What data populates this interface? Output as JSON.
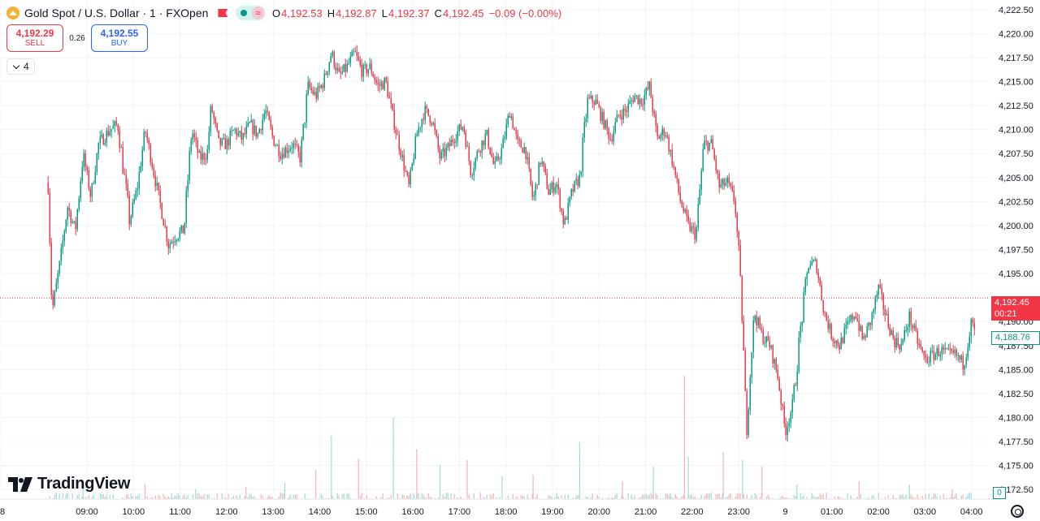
{
  "symbol": {
    "title": "Gold Spot / U.S. Dollar · 1 · FXOpen",
    "icon": "gold-symbol-icon",
    "ohlc": {
      "o_label": "O",
      "o": "4,192.53",
      "h_label": "H",
      "h": "4,192.87",
      "l_label": "L",
      "l": "4,192.37",
      "c_label": "C",
      "c": "4,192.45",
      "change": "−0.09 (−0.00%)"
    },
    "wave_glyph": "≈"
  },
  "trade": {
    "sell_price": "4,192.29",
    "sell_label": "SELL",
    "spread": "0.26",
    "buy_price": "4,192.55",
    "buy_label": "BUY"
  },
  "indicators": {
    "count": "4"
  },
  "brand": {
    "name": "TradingView"
  },
  "price_tags": {
    "last_price": "4,192.45",
    "countdown": "00:21",
    "avg_line": "4,188.76",
    "volume": "0"
  },
  "colors": {
    "up": "#089981",
    "down": "#f23645",
    "up_volume": "#9fdcd1",
    "down_volume": "#f6b2b8",
    "grid": "#f0f3fa",
    "last_line": "#f23645"
  },
  "chart_data": {
    "type": "candlestick",
    "title": "Gold Spot / U.S. Dollar",
    "interval": "1",
    "ylim": [
      4171.5,
      4223.5
    ],
    "y_ticks": [
      "4,222.50",
      "4,220.00",
      "4,217.50",
      "4,215.00",
      "4,212.50",
      "4,210.00",
      "4,207.50",
      "4,205.00",
      "4,202.50",
      "4,200.00",
      "4,197.50",
      "4,195.00",
      "4,190.00",
      "4,187.50",
      "4,185.00",
      "4,182.50",
      "4,180.00",
      "4,177.50",
      "4,175.00",
      "4,172.50"
    ],
    "x_ticks": [
      "8",
      "09:00",
      "10:00",
      "11:00",
      "12:00",
      "13:00",
      "14:00",
      "15:00",
      "16:00",
      "17:00",
      "18:00",
      "19:00",
      "20:00",
      "21:00",
      "22:00",
      "23:00",
      "9",
      "01:00",
      "02:00",
      "03:00",
      "04:00"
    ],
    "last_price": 4192.45,
    "grid": true,
    "price_path": [
      [
        "08:10",
        4204.5
      ],
      [
        "08:15",
        4191.0
      ],
      [
        "08:25",
        4196.0
      ],
      [
        "08:35",
        4202.0
      ],
      [
        "08:45",
        4199.5
      ],
      [
        "08:55",
        4207.5
      ],
      [
        "09:05",
        4203.0
      ],
      [
        "09:15",
        4208.5
      ],
      [
        "09:30",
        4210.0
      ],
      [
        "09:40",
        4210.5
      ],
      [
        "09:55",
        4200.5
      ],
      [
        "10:05",
        4204.0
      ],
      [
        "10:15",
        4210.0
      ],
      [
        "10:25",
        4206.0
      ],
      [
        "10:35",
        4202.0
      ],
      [
        "10:45",
        4198.0
      ],
      [
        "10:55",
        4199.0
      ],
      [
        "11:05",
        4199.5
      ],
      [
        "11:15",
        4210.0
      ],
      [
        "11:25",
        4207.0
      ],
      [
        "11:35",
        4207.5
      ],
      [
        "11:40",
        4212.5
      ],
      [
        "11:50",
        4208.5
      ],
      [
        "12:00",
        4208.5
      ],
      [
        "12:10",
        4210.0
      ],
      [
        "12:20",
        4209.0
      ],
      [
        "12:30",
        4210.5
      ],
      [
        "12:40",
        4209.5
      ],
      [
        "12:50",
        4212.0
      ],
      [
        "13:00",
        4209.0
      ],
      [
        "13:10",
        4207.5
      ],
      [
        "13:25",
        4208.5
      ],
      [
        "13:35",
        4207.0
      ],
      [
        "13:45",
        4214.5
      ],
      [
        "13:55",
        4213.5
      ],
      [
        "14:05",
        4215.0
      ],
      [
        "14:15",
        4218.0
      ],
      [
        "14:25",
        4215.5
      ],
      [
        "14:35",
        4216.5
      ],
      [
        "14:45",
        4218.0
      ],
      [
        "14:55",
        4216.0
      ],
      [
        "15:05",
        4216.5
      ],
      [
        "15:15",
        4214.5
      ],
      [
        "15:25",
        4215.0
      ],
      [
        "15:35",
        4211.0
      ],
      [
        "15:45",
        4207.5
      ],
      [
        "15:55",
        4204.0
      ],
      [
        "16:05",
        4209.5
      ],
      [
        "16:15",
        4212.0
      ],
      [
        "16:25",
        4211.0
      ],
      [
        "16:35",
        4207.0
      ],
      [
        "16:45",
        4208.0
      ],
      [
        "16:55",
        4209.5
      ],
      [
        "17:05",
        4210.5
      ],
      [
        "17:15",
        4205.5
      ],
      [
        "17:25",
        4208.0
      ],
      [
        "17:35",
        4209.5
      ],
      [
        "17:45",
        4206.0
      ],
      [
        "17:55",
        4208.0
      ],
      [
        "18:05",
        4212.0
      ],
      [
        "18:15",
        4208.5
      ],
      [
        "18:25",
        4208.0
      ],
      [
        "18:35",
        4202.5
      ],
      [
        "18:45",
        4207.0
      ],
      [
        "18:55",
        4203.5
      ],
      [
        "19:05",
        4204.5
      ],
      [
        "19:15",
        4200.0
      ],
      [
        "19:25",
        4203.5
      ],
      [
        "19:35",
        4205.0
      ],
      [
        "19:45",
        4213.0
      ],
      [
        "19:55",
        4213.0
      ],
      [
        "20:05",
        4211.0
      ],
      [
        "20:15",
        4209.0
      ],
      [
        "20:25",
        4211.5
      ],
      [
        "20:35",
        4212.0
      ],
      [
        "20:45",
        4213.5
      ],
      [
        "20:55",
        4213.0
      ],
      [
        "21:05",
        4214.5
      ],
      [
        "21:15",
        4209.0
      ],
      [
        "21:25",
        4210.0
      ],
      [
        "21:35",
        4206.5
      ],
      [
        "21:45",
        4202.5
      ],
      [
        "21:55",
        4200.0
      ],
      [
        "22:05",
        4199.0
      ],
      [
        "22:15",
        4208.5
      ],
      [
        "22:25",
        4208.5
      ],
      [
        "22:35",
        4204.0
      ],
      [
        "22:45",
        4204.5
      ],
      [
        "22:55",
        4202.5
      ],
      [
        "23:00",
        4197.0
      ],
      [
        "23:05",
        4189.5
      ],
      [
        "23:10",
        4178.5
      ],
      [
        "23:15",
        4185.0
      ],
      [
        "23:20",
        4191.0
      ],
      [
        "23:30",
        4188.5
      ],
      [
        "23:40",
        4187.5
      ],
      [
        "23:50",
        4184.5
      ],
      [
        "00:00",
        4178.5
      ],
      [
        "00:10",
        4181.5
      ],
      [
        "00:20",
        4189.5
      ],
      [
        "00:30",
        4196.0
      ],
      [
        "00:40",
        4196.0
      ],
      [
        "00:50",
        4191.0
      ],
      [
        "01:00",
        4188.5
      ],
      [
        "01:10",
        4187.5
      ],
      [
        "01:20",
        4189.5
      ],
      [
        "01:30",
        4191.0
      ],
      [
        "01:40",
        4188.0
      ],
      [
        "01:50",
        4190.0
      ],
      [
        "02:00",
        4193.5
      ],
      [
        "02:10",
        4190.5
      ],
      [
        "02:20",
        4188.0
      ],
      [
        "02:30",
        4187.5
      ],
      [
        "02:40",
        4190.5
      ],
      [
        "02:50",
        4188.0
      ],
      [
        "03:00",
        4186.0
      ],
      [
        "03:10",
        4186.5
      ],
      [
        "03:20",
        4187.0
      ],
      [
        "03:30",
        4186.5
      ],
      [
        "03:40",
        4186.5
      ],
      [
        "03:50",
        4185.5
      ],
      [
        "04:00",
        4190.0
      ],
      [
        "04:05",
        4188.5
      ]
    ],
    "volume_spikes": [
      [
        "08:55",
        20
      ],
      [
        "10:15",
        18
      ],
      [
        "11:20",
        12
      ],
      [
        "12:25",
        15
      ],
      [
        "13:15",
        20
      ],
      [
        "13:55",
        36
      ],
      [
        "14:15",
        78
      ],
      [
        "14:50",
        50
      ],
      [
        "15:35",
        100
      ],
      [
        "16:05",
        62
      ],
      [
        "16:35",
        42
      ],
      [
        "17:10",
        48
      ],
      [
        "17:55",
        28
      ],
      [
        "18:35",
        30
      ],
      [
        "19:35",
        70
      ],
      [
        "20:30",
        22
      ],
      [
        "21:10",
        40
      ],
      [
        "21:50",
        152
      ],
      [
        "21:55",
        52
      ],
      [
        "22:40",
        58
      ],
      [
        "23:05",
        48
      ],
      [
        "23:30",
        40
      ],
      [
        "00:15",
        18
      ],
      [
        "01:35",
        22
      ],
      [
        "02:40",
        18
      ],
      [
        "03:35",
        12
      ]
    ]
  }
}
